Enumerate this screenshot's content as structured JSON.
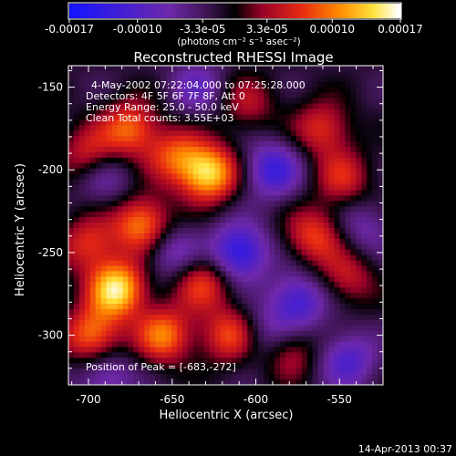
{
  "chart_data": {
    "type": "heatmap",
    "title": "Reconstructed RHESSI Image",
    "xlabel": "Heliocentric X (arcsec)",
    "ylabel": "Heliocentric Y (arcsec)",
    "xlim": [
      -712,
      -524
    ],
    "ylim": [
      -330,
      -137
    ],
    "xticks": [
      -700,
      -650,
      -600,
      -550
    ],
    "xtick_labels": [
      "-700",
      "-650",
      "-600",
      "-550"
    ],
    "yticks": [
      -150,
      -200,
      -250,
      -300
    ],
    "ytick_labels": [
      "-150",
      "-200",
      "-250",
      "-300"
    ],
    "colorbar": {
      "ticks": [
        -0.00017,
        -0.0001,
        -3.3e-05,
        3.3e-05,
        0.0001,
        0.00017
      ],
      "tick_labels": [
        "-0.00017",
        "-0.00010",
        "-3.3e-05",
        "3.3e-05",
        "0.00010",
        "0.00017"
      ],
      "unit_label": "(photons cm⁻² s⁻¹ asec⁻²)",
      "range": [
        -0.00017,
        0.00017
      ]
    },
    "annotations": [
      "4-May-2002 07:22:04.000 to 07:25:28.000",
      "Detectors: 4F 5F 6F 7F 8F, Att 0",
      "Energy Range: 25.0 - 50.0 keV",
      "Clean     Total counts: 3.55E+03"
    ],
    "peak_label": "Position of Peak = [-683,-272]",
    "peak": {
      "x": -683,
      "y": -272
    },
    "blobs": [
      {
        "x": -683,
        "y": -272,
        "amp": 1.0
      },
      {
        "x": -698,
        "y": -300,
        "amp": 0.7
      },
      {
        "x": -628,
        "y": -202,
        "amp": 0.95
      },
      {
        "x": -648,
        "y": -192,
        "amp": 0.55
      },
      {
        "x": -668,
        "y": -233,
        "amp": 0.75
      },
      {
        "x": -675,
        "y": -175,
        "amp": 0.65
      },
      {
        "x": -700,
        "y": -190,
        "amp": 0.45
      },
      {
        "x": -655,
        "y": -300,
        "amp": 0.7
      },
      {
        "x": -632,
        "y": -268,
        "amp": 0.55
      },
      {
        "x": -615,
        "y": -300,
        "amp": 0.6
      },
      {
        "x": -560,
        "y": -175,
        "amp": 0.5
      },
      {
        "x": -548,
        "y": -205,
        "amp": 0.45
      },
      {
        "x": -565,
        "y": -240,
        "amp": 0.55
      },
      {
        "x": -545,
        "y": -265,
        "amp": 0.4
      },
      {
        "x": -580,
        "y": -310,
        "amp": 0.4
      },
      {
        "x": -700,
        "y": -245,
        "amp": 0.5
      },
      {
        "x": -605,
        "y": -160,
        "amp": 0.35
      },
      {
        "x": -610,
        "y": -250,
        "amp": -0.75
      },
      {
        "x": -590,
        "y": -200,
        "amp": -0.6
      },
      {
        "x": -575,
        "y": -280,
        "amp": -0.6
      },
      {
        "x": -650,
        "y": -250,
        "amp": -0.4
      },
      {
        "x": -545,
        "y": -315,
        "amp": -0.5
      },
      {
        "x": -690,
        "y": -325,
        "amp": -0.4
      },
      {
        "x": -635,
        "y": -150,
        "amp": -0.35
      },
      {
        "x": -595,
        "y": -300,
        "amp": -0.35
      },
      {
        "x": -535,
        "y": -235,
        "amp": -0.3
      },
      {
        "x": -690,
        "y": -205,
        "amp": -0.3
      }
    ]
  },
  "footer": {
    "timestamp": "14-Apr-2013 00:37"
  }
}
